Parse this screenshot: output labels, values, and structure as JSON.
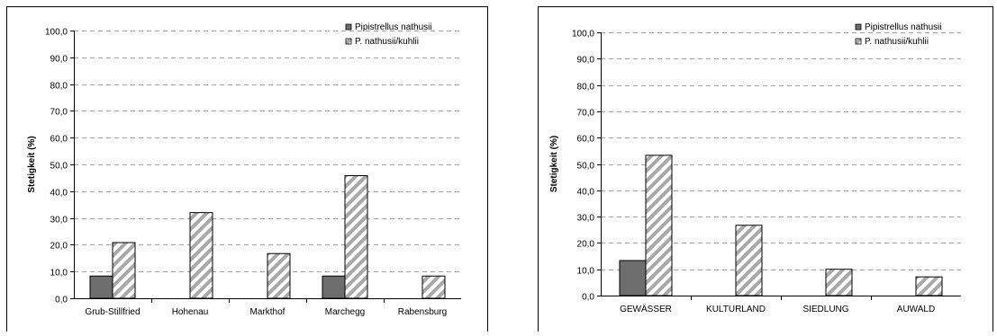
{
  "colors": {
    "solid": "#6e6e6e",
    "hatch": "#a8a8a8",
    "grid": "#a0a0a0"
  },
  "chart_data": [
    {
      "type": "bar",
      "categories": [
        "Grub-Stillfried",
        "Hohenau",
        "Markthof",
        "Marchegg",
        "Rabensburg"
      ],
      "series": [
        {
          "name": "Pipistrellus nathusii",
          "values": [
            8.3,
            0,
            0,
            8.3,
            0
          ]
        },
        {
          "name": "P. nathusii/kuhlii",
          "values": [
            20.8,
            32.0,
            16.7,
            45.8,
            8.3
          ]
        }
      ],
      "xlabel": "",
      "ylabel": "Stetigkeit (%)",
      "ylim": [
        0,
        100
      ],
      "ytick_labels": [
        "0,0",
        "10,0",
        "20,0",
        "30,0",
        "40,0",
        "50,0",
        "60,0",
        "70,0",
        "80,0",
        "90,0",
        "100,0"
      ],
      "grid": true,
      "legend": "top-right"
    },
    {
      "type": "bar",
      "categories": [
        "GEWÄSSER",
        "KULTURLAND",
        "SIEDLUNG",
        "AUWALD"
      ],
      "series": [
        {
          "name": "Pipistrellus nathusii",
          "values": [
            13.3,
            0,
            0,
            0
          ]
        },
        {
          "name": "P. nathusii/kuhlii",
          "values": [
            53.3,
            26.7,
            10.0,
            7.1
          ]
        }
      ],
      "xlabel": "",
      "ylabel": "Stetigkeit (%)",
      "ylim": [
        0,
        100
      ],
      "ytick_labels": [
        "0,0",
        "10,0",
        "20,0",
        "30,0",
        "40,0",
        "50,0",
        "60,0",
        "70,0",
        "80,0",
        "90,0",
        "100,0"
      ],
      "grid": true,
      "legend": "top-right"
    }
  ]
}
